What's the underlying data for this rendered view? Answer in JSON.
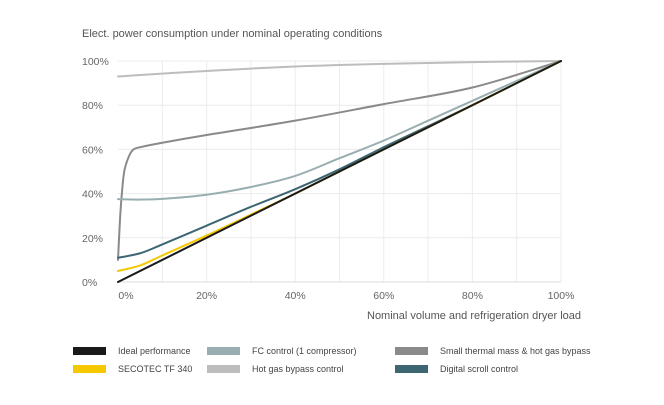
{
  "chart_data": {
    "type": "line",
    "title": "Elect. power consumption under nominal operating conditions",
    "xlabel": "Nominal volume and refrigeration dryer load",
    "ylabel": "",
    "xlim": [
      0,
      100
    ],
    "ylim": [
      0,
      100
    ],
    "x_ticks": [
      "0%",
      "20%",
      "40%",
      "60%",
      "80%",
      "100%"
    ],
    "y_ticks": [
      "0%",
      "20%",
      "40%",
      "60%",
      "80%",
      "100%"
    ],
    "x_tick_values": [
      0,
      20,
      40,
      60,
      80,
      100
    ],
    "y_tick_values": [
      0,
      20,
      40,
      60,
      80,
      100
    ],
    "grid": true,
    "legend_position": "bottom",
    "series": [
      {
        "name": "Hot gas bypass control",
        "color": "#bdbdbd",
        "points": [
          [
            0,
            93
          ],
          [
            20,
            95.5
          ],
          [
            40,
            97.5
          ],
          [
            60,
            98.7
          ],
          [
            80,
            99.5
          ],
          [
            100,
            100
          ]
        ]
      },
      {
        "name": "Small thermal mass & hot gas bypass",
        "color": "#8a8a8a",
        "points": [
          [
            0,
            10
          ],
          [
            0.5,
            30
          ],
          [
            1,
            43
          ],
          [
            1.5,
            51
          ],
          [
            2.5,
            57
          ],
          [
            3.5,
            60
          ],
          [
            5,
            61
          ],
          [
            10,
            63
          ],
          [
            20,
            66.5
          ],
          [
            40,
            73
          ],
          [
            60,
            80.5
          ],
          [
            80,
            88
          ],
          [
            100,
            100
          ]
        ]
      },
      {
        "name": "FC control (1 compressor)",
        "color": "#98aeb0",
        "points": [
          [
            0,
            37.5
          ],
          [
            5,
            37.3
          ],
          [
            10,
            37.6
          ],
          [
            20,
            39.5
          ],
          [
            30,
            43
          ],
          [
            40,
            48
          ],
          [
            50,
            56
          ],
          [
            60,
            64
          ],
          [
            70,
            73
          ],
          [
            80,
            82
          ],
          [
            90,
            91
          ],
          [
            100,
            100
          ]
        ]
      },
      {
        "name": "Digital scroll control",
        "color": "#3d6673",
        "points": [
          [
            0,
            11
          ],
          [
            5,
            13
          ],
          [
            10,
            17
          ],
          [
            20,
            25.5
          ],
          [
            30,
            34
          ],
          [
            40,
            42
          ],
          [
            50,
            51
          ],
          [
            60,
            61
          ],
          [
            70,
            70.5
          ],
          [
            80,
            80
          ],
          [
            90,
            90
          ],
          [
            100,
            100
          ]
        ]
      },
      {
        "name": "SECOTEC TF 340",
        "color": "#f5c800",
        "points": [
          [
            0,
            5
          ],
          [
            5,
            7.5
          ],
          [
            10,
            12
          ],
          [
            20,
            21
          ],
          [
            30,
            30.5
          ],
          [
            40,
            40
          ],
          [
            60,
            60
          ],
          [
            80,
            80
          ],
          [
            100,
            100
          ]
        ]
      },
      {
        "name": "Ideal performance",
        "color": "#1a1a1a",
        "points": [
          [
            0,
            0
          ],
          [
            100,
            100
          ]
        ]
      }
    ]
  },
  "legend": [
    {
      "label": "Ideal performance",
      "color": "#1a1a1a"
    },
    {
      "label": "SECOTEC TF 340",
      "color": "#f5c800"
    },
    {
      "label": "FC control (1 compressor)",
      "color": "#98aeb0"
    },
    {
      "label": "Hot gas bypass control",
      "color": "#bdbdbd"
    },
    {
      "label": "Small thermal mass & hot gas bypass",
      "color": "#8a8a8a"
    },
    {
      "label": "Digital scroll control",
      "color": "#3d6673"
    }
  ]
}
